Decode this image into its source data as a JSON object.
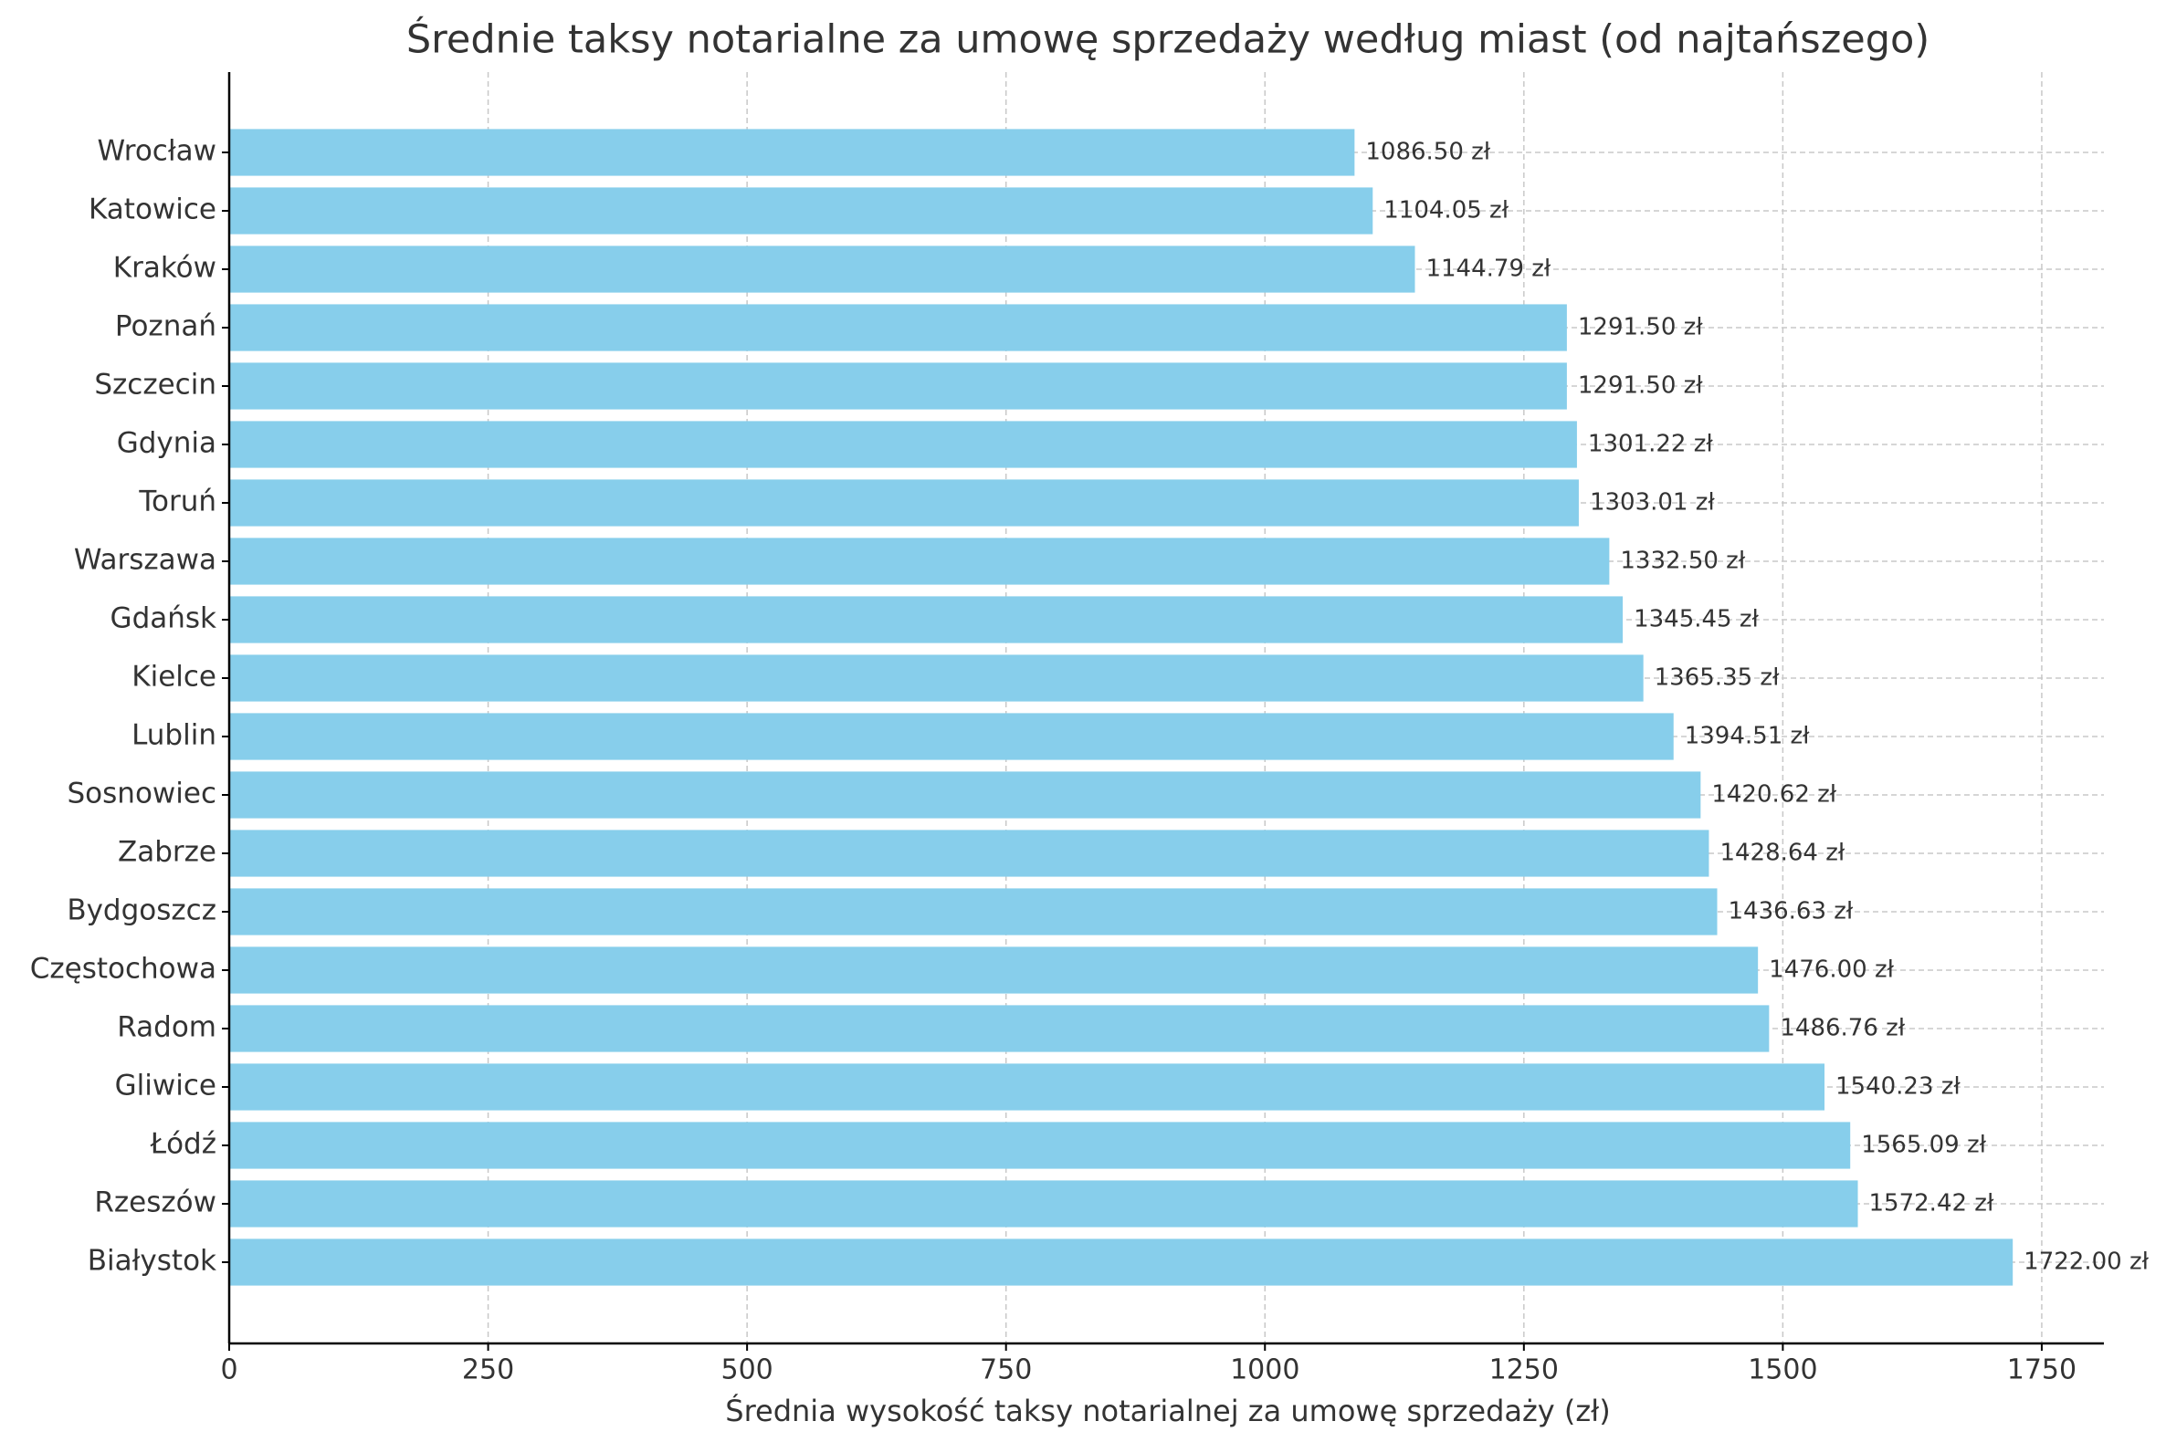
{
  "chart_data": {
    "type": "bar",
    "orientation": "horizontal",
    "title": "Średnie taksy notarialne za umowę sprzedaży według miast (od najtańszego)",
    "x_label": "Średnia wysokość taksy notarialnej za umowę sprzedaży (zł)",
    "categories": [
      "Wrocław",
      "Katowice",
      "Kraków",
      "Poznań",
      "Szczecin",
      "Gdynia",
      "Toruń",
      "Warszawa",
      "Gdańsk",
      "Kielce",
      "Lublin",
      "Sosnowiec",
      "Zabrze",
      "Bydgoszcz",
      "Częstochowa",
      "Radom",
      "Gliwice",
      "Łódź",
      "Rzeszów",
      "Białystok"
    ],
    "values": [
      1086.5,
      1104.05,
      1144.79,
      1291.5,
      1291.5,
      1301.22,
      1303.01,
      1332.5,
      1345.45,
      1365.35,
      1394.51,
      1420.62,
      1428.64,
      1436.63,
      1476.0,
      1486.76,
      1540.23,
      1565.09,
      1572.42,
      1722.0
    ],
    "value_labels": [
      "1086.50 zł",
      "1104.05 zł",
      "1144.79 zł",
      "1291.50 zł",
      "1291.50 zł",
      "1301.22 zł",
      "1303.01 zł",
      "1332.50 zł",
      "1345.45 zł",
      "1365.35 zł",
      "1394.51 zł",
      "1420.62 zł",
      "1428.64 zł",
      "1436.63 zł",
      "1476.00 zł",
      "1486.76 zł",
      "1540.23 zł",
      "1565.09 zł",
      "1572.42 zł",
      "1722.00 zł"
    ],
    "color": "#87ceeb",
    "xlim": [
      0,
      1810
    ],
    "xticks": [
      0,
      250,
      500,
      750,
      1000,
      1250,
      1500,
      1750
    ],
    "grid": true
  }
}
